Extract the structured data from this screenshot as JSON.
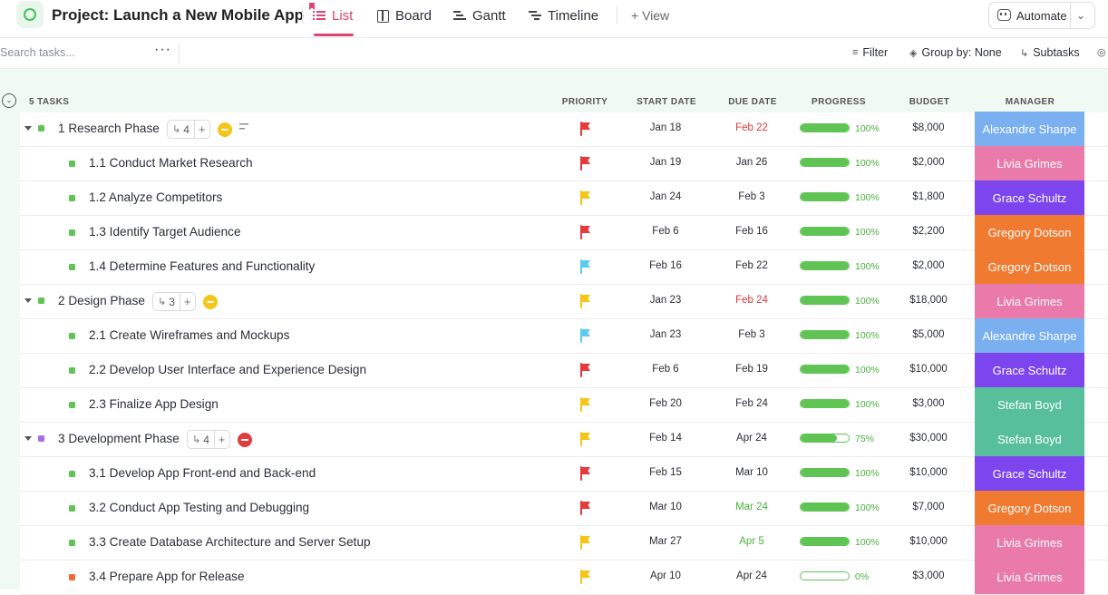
{
  "header": {
    "project_title": "Project: Launch a New Mobile App",
    "tabs": [
      {
        "label": "List",
        "icon": "list-icon",
        "active": true
      },
      {
        "label": "Board",
        "icon": "board-icon"
      },
      {
        "label": "Gantt",
        "icon": "gantt-icon"
      },
      {
        "label": "Timeline",
        "icon": "timeline-icon"
      }
    ],
    "add_view_label": "+ View",
    "automate_label": "Automate"
  },
  "toolbar": {
    "search_placeholder": "Search tasks...",
    "filter_label": "Filter",
    "group_by_label": "Group by: None",
    "subtasks_label": "Subtasks"
  },
  "columns": {
    "task_count": "5 TASKS",
    "priority": "PRIORITY",
    "start_date": "START DATE",
    "due_date": "DUE DATE",
    "progress": "PROGRESS",
    "budget": "BUDGET",
    "manager": "MANAGER"
  },
  "colors": {
    "accent": "#e0446e",
    "flag_red": "#e5393b",
    "flag_yellow": "#f5c518",
    "flag_cyan": "#5bcbef",
    "due_red": "#d9363e",
    "due_green": "#49b03d",
    "status_green": "#5fc454",
    "status_purple": "#a86ee0",
    "status_orange": "#f06a35"
  },
  "rows": [
    {
      "type": "parent",
      "name": "1 Research Phase",
      "subtasks": "4",
      "status_color": "#f5c518",
      "has_desc": true,
      "square": "#5fc454",
      "flag": "#e5393b",
      "start": "Jan 18",
      "due": "Feb 22",
      "due_color": "#d9363e",
      "progress": 100,
      "pct": "100%",
      "budget": "$8,000",
      "manager": "Alexandre Sharpe",
      "mgr_color": "#7aaff0"
    },
    {
      "type": "child",
      "name": "1.1 Conduct Market Research",
      "square": "#5fc454",
      "flag": "#e5393b",
      "start": "Jan 19",
      "due": "Jan 26",
      "due_color": "#2a2e34",
      "progress": 100,
      "pct": "100%",
      "budget": "$2,000",
      "manager": "Livia Grimes",
      "mgr_color": "#e97aa9"
    },
    {
      "type": "child",
      "name": "1.2 Analyze Competitors",
      "square": "#5fc454",
      "flag": "#f5c518",
      "start": "Jan 24",
      "due": "Feb 3",
      "due_color": "#2a2e34",
      "progress": 100,
      "pct": "100%",
      "budget": "$1,800",
      "manager": "Grace Schultz",
      "mgr_color": "#7c45ee"
    },
    {
      "type": "child",
      "name": "1.3 Identify Target Audience",
      "square": "#5fc454",
      "flag": "#e5393b",
      "start": "Feb 6",
      "due": "Feb 16",
      "due_color": "#2a2e34",
      "progress": 100,
      "pct": "100%",
      "budget": "$2,200",
      "manager": "Gregory Dotson",
      "mgr_color": "#ef7a30"
    },
    {
      "type": "child",
      "name": "1.4 Determine Features and Functionality",
      "square": "#5fc454",
      "flag": "#5bcbef",
      "start": "Feb 16",
      "due": "Feb 22",
      "due_color": "#2a2e34",
      "progress": 100,
      "pct": "100%",
      "budget": "$2,000",
      "manager": "Gregory Dotson",
      "mgr_color": "#ef7a30"
    },
    {
      "type": "parent",
      "name": "2 Design Phase",
      "subtasks": "3",
      "status_color": "#f5c518",
      "has_desc": false,
      "square": "#5fc454",
      "flag": "#f5c518",
      "start": "Jan 23",
      "due": "Feb 24",
      "due_color": "#d9363e",
      "progress": 100,
      "pct": "100%",
      "budget": "$18,000",
      "manager": "Livia Grimes",
      "mgr_color": "#e97aa9"
    },
    {
      "type": "child",
      "name": "2.1 Create Wireframes and Mockups",
      "square": "#5fc454",
      "flag": "#5bcbef",
      "start": "Jan 23",
      "due": "Feb 3",
      "due_color": "#2a2e34",
      "progress": 100,
      "pct": "100%",
      "budget": "$5,000",
      "manager": "Alexandre Sharpe",
      "mgr_color": "#7aaff0"
    },
    {
      "type": "child",
      "name": "2.2 Develop User Interface and Experience Design",
      "square": "#5fc454",
      "flag": "#e5393b",
      "start": "Feb 6",
      "due": "Feb 19",
      "due_color": "#2a2e34",
      "progress": 100,
      "pct": "100%",
      "budget": "$10,000",
      "manager": "Grace Schultz",
      "mgr_color": "#7c45ee"
    },
    {
      "type": "child",
      "name": "2.3 Finalize App Design",
      "square": "#5fc454",
      "flag": "#f5c518",
      "start": "Feb 20",
      "due": "Feb 24",
      "due_color": "#2a2e34",
      "progress": 100,
      "pct": "100%",
      "budget": "$3,000",
      "manager": "Stefan Boyd",
      "mgr_color": "#57bf9b"
    },
    {
      "type": "parent",
      "name": "3 Development Phase",
      "subtasks": "4",
      "status_color": "#e03e3e",
      "has_desc": false,
      "square": "#a86ee0",
      "flag": "#f5c518",
      "start": "Feb 14",
      "due": "Apr 24",
      "due_color": "#2a2e34",
      "progress": 75,
      "pct": "75%",
      "budget": "$30,000",
      "manager": "Stefan Boyd",
      "mgr_color": "#57bf9b"
    },
    {
      "type": "child",
      "name": "3.1 Develop App Front-end and Back-end",
      "square": "#5fc454",
      "flag": "#e5393b",
      "start": "Feb 15",
      "due": "Mar 10",
      "due_color": "#2a2e34",
      "progress": 100,
      "pct": "100%",
      "budget": "$10,000",
      "manager": "Grace Schultz",
      "mgr_color": "#7c45ee"
    },
    {
      "type": "child",
      "name": "3.2 Conduct App Testing and Debugging",
      "square": "#5fc454",
      "flag": "#e5393b",
      "start": "Mar 10",
      "due": "Mar 24",
      "due_color": "#49b03d",
      "progress": 100,
      "pct": "100%",
      "budget": "$7,000",
      "manager": "Gregory Dotson",
      "mgr_color": "#ef7a30"
    },
    {
      "type": "child",
      "name": "3.3 Create Database Architecture and Server Setup",
      "square": "#5fc454",
      "flag": "#f5c518",
      "start": "Mar 27",
      "due": "Apr 5",
      "due_color": "#49b03d",
      "progress": 100,
      "pct": "100%",
      "budget": "$10,000",
      "manager": "Livia Grimes",
      "mgr_color": "#e97aa9"
    },
    {
      "type": "child",
      "name": "3.4 Prepare App for Release",
      "square": "#f06a35",
      "flag": "#f5c518",
      "start": "Apr 10",
      "due": "Apr 24",
      "due_color": "#2a2e34",
      "progress": 0,
      "pct": "0%",
      "budget": "$3,000",
      "manager": "Livia Grimes",
      "mgr_color": "#e97aa9"
    }
  ]
}
